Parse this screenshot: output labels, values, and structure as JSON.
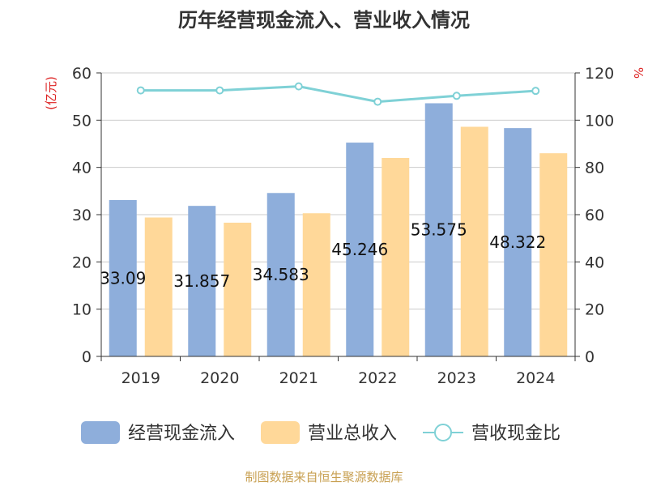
{
  "chart_data": {
    "type": "bar",
    "title": "历年经营现金流入、营业收入情况",
    "left_unit": "(亿元)",
    "right_unit": "%",
    "categories": [
      "2019",
      "2020",
      "2021",
      "2022",
      "2023",
      "2024"
    ],
    "ylim_left": [
      0,
      60
    ],
    "yticks_left": [
      0,
      10,
      20,
      30,
      40,
      50,
      60
    ],
    "ylim_right": [
      0,
      120
    ],
    "yticks_right": [
      0,
      20,
      40,
      60,
      80,
      100,
      120
    ],
    "grid": true,
    "legend_position": "bottom",
    "series": [
      {
        "name": "经营现金流入",
        "kind": "bar",
        "axis": "left",
        "color": "#8eaedb",
        "values": [
          33.09,
          31.857,
          34.583,
          45.246,
          53.575,
          48.322
        ],
        "labels": [
          "33.09",
          "31.857",
          "34.583",
          "45.246",
          "53.575",
          "48.322"
        ]
      },
      {
        "name": "营业总收入",
        "kind": "bar",
        "axis": "left",
        "color": "#ffd899",
        "values": [
          29.4,
          28.3,
          30.3,
          42.0,
          48.6,
          43.0
        ]
      },
      {
        "name": "营收现金比",
        "kind": "line",
        "axis": "right",
        "color": "#7fd1d6",
        "values": [
          112.6,
          112.6,
          114.3,
          107.8,
          110.3,
          112.4
        ]
      }
    ]
  },
  "source": "制图数据来自恒生聚源数据库"
}
